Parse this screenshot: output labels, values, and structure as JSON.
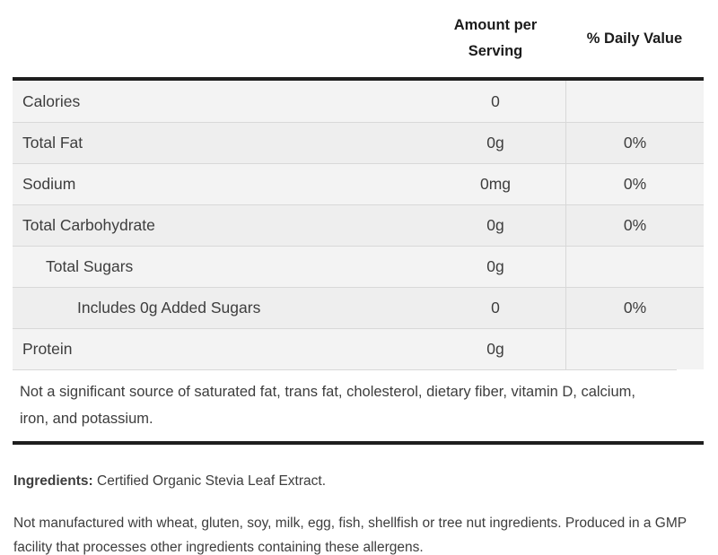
{
  "header": {
    "amount_label": "Amount per Serving",
    "daily_value_label": "% Daily Value"
  },
  "table": {
    "rows": [
      {
        "label": "Calories",
        "amount": "0",
        "daily_value": "",
        "indent": 0
      },
      {
        "label": "Total Fat",
        "amount": "0g",
        "daily_value": "0%",
        "indent": 0
      },
      {
        "label": "Sodium",
        "amount": "0mg",
        "daily_value": "0%",
        "indent": 0
      },
      {
        "label": "Total Carbohydrate",
        "amount": "0g",
        "daily_value": "0%",
        "indent": 0
      },
      {
        "label": "Total Sugars",
        "amount": "0g",
        "daily_value": "",
        "indent": 1
      },
      {
        "label": "Includes 0g Added Sugars",
        "amount": "0",
        "daily_value": "0%",
        "indent": 2
      },
      {
        "label": "Protein",
        "amount": "0g",
        "daily_value": "",
        "indent": 0
      }
    ],
    "footnote": "Not a significant source of saturated fat, trans fat, cholesterol, dietary fiber, vitamin D, calcium, iron, and potassium."
  },
  "ingredients": {
    "label": "Ingredients:",
    "text": " Certified Organic Stevia Leaf Extract."
  },
  "allergen_note": "Not manufactured with wheat, gluten, soy, milk, egg, fish, shellfish or tree nut ingredients. Produced in a GMP facility that processes other ingredients containing these allergens.",
  "colors": {
    "bar": "#1e1e1e",
    "row_light": "#f3f3f3",
    "row_dark": "#eeeeee",
    "line": "#d8d8d8",
    "text": "#3d3d3d",
    "header_text": "#1b1b1b"
  }
}
